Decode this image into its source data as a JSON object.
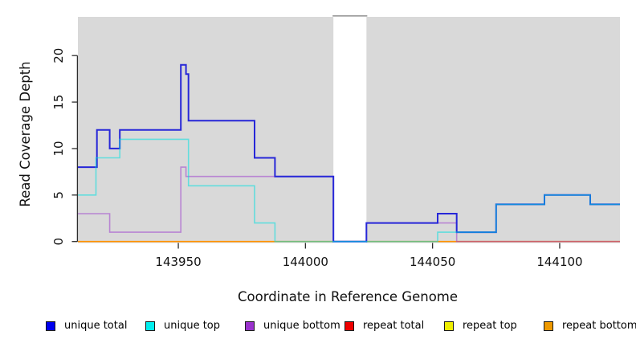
{
  "chart_data": {
    "type": "line",
    "subtype": "step-coverage-plot",
    "title": "",
    "xlabel": "Coordinate in Reference Genome",
    "ylabel": "Read Coverage Depth",
    "x_ticks": [
      143950,
      144000,
      144050,
      144100
    ],
    "y_ticks": [
      0,
      5,
      10,
      15,
      20
    ],
    "x_range": [
      143910.5,
      144123.7
    ],
    "y_range": [
      0,
      24.2
    ],
    "grid": false,
    "plot_bg": "#d9d9d9",
    "axis_color": "#2e2e2e",
    "tick_label_color": "#111111",
    "masked_region": {
      "x_start": 144011,
      "x_end": 144024,
      "fill": "#ffffff",
      "cap_color": "#999999"
    },
    "legend_position": "bottom",
    "series": [
      {
        "id": "repeat-total",
        "legend_label": "repeat total",
        "legend_color": "#ee0000",
        "line_color": "#dd0000",
        "line_opacity": 1,
        "line_width": 1.4,
        "points": [
          [
            143910.5,
            0
          ]
        ]
      },
      {
        "id": "repeat-top",
        "legend_label": "repeat top",
        "legend_color": "#eeee00",
        "line_color": "#e8e800",
        "line_opacity": 1,
        "line_width": 1.4,
        "points": [
          [
            143910.5,
            0
          ]
        ]
      },
      {
        "id": "repeat-bottom",
        "legend_label": "repeat bottom",
        "legend_color": "#ee9900",
        "line_color": "#ff9100",
        "line_opacity": 1,
        "line_width": 1.6,
        "points": [
          [
            143910.5,
            0
          ]
        ]
      },
      {
        "id": "unique-bottom",
        "legend_label": "unique bottom",
        "legend_color": "#9a32cd",
        "line_color": "#9a32cd",
        "line_opacity": 0.5,
        "line_width": 1.6,
        "points": [
          [
            143910.5,
            3
          ],
          [
            143923,
            1
          ],
          [
            143951,
            8
          ],
          [
            143953,
            7
          ],
          [
            144011,
            0
          ],
          [
            144024,
            2
          ],
          [
            144059.5,
            0
          ]
        ]
      },
      {
        "id": "unique-total",
        "legend_label": "unique total",
        "legend_color": "#0000ee",
        "line_color": "#2727d8",
        "line_opacity": 1,
        "line_width": 2,
        "points": [
          [
            143910.5,
            8
          ],
          [
            143918,
            12
          ],
          [
            143923,
            10
          ],
          [
            143927,
            12
          ],
          [
            143951,
            19
          ],
          [
            143953,
            18
          ],
          [
            143954,
            13
          ],
          [
            143980,
            9
          ],
          [
            143988,
            7
          ],
          [
            144011,
            0
          ],
          [
            144024,
            2
          ],
          [
            144052,
            3
          ],
          [
            144059.5,
            1
          ],
          [
            144075,
            4
          ],
          [
            144094,
            5
          ],
          [
            144112,
            4
          ]
        ]
      },
      {
        "id": "unique-top",
        "legend_label": "unique top",
        "legend_color": "#00eeee",
        "line_color": "#00e0e0",
        "line_opacity": 0.55,
        "line_width": 1.6,
        "points": [
          [
            143910.5,
            5
          ],
          [
            143917.6,
            9
          ],
          [
            143927,
            11
          ],
          [
            143954,
            6
          ],
          [
            143980,
            2
          ],
          [
            143988,
            0
          ],
          [
            144052,
            1
          ],
          [
            144075,
            4
          ],
          [
            144094,
            5
          ],
          [
            144112,
            4
          ]
        ]
      }
    ],
    "legend": {
      "items": [
        {
          "id": "unique-total",
          "label": "unique total",
          "color": "#0000ee"
        },
        {
          "id": "unique-top",
          "label": "unique top",
          "color": "#00eeee"
        },
        {
          "id": "unique-bottom",
          "label": "unique bottom",
          "color": "#9a32cd"
        },
        {
          "id": "repeat-total",
          "label": "repeat total",
          "color": "#ee0000"
        },
        {
          "id": "repeat-top",
          "label": "repeat top",
          "color": "#eeee00"
        },
        {
          "id": "repeat-bottom",
          "label": "repeat bottom",
          "color": "#ee9900"
        }
      ]
    }
  }
}
